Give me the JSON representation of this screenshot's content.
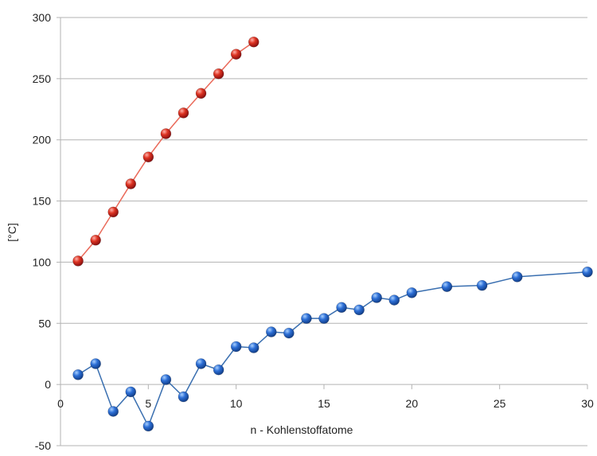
{
  "chart_data": {
    "type": "line",
    "title": "",
    "xlabel": "n - Kohlenstoffatome",
    "ylabel": "[°C]",
    "xlim": [
      0,
      30
    ],
    "ylim": [
      -50,
      300
    ],
    "xticks": [
      0,
      5,
      10,
      15,
      20,
      25,
      30
    ],
    "yticks": [
      -50,
      0,
      50,
      100,
      150,
      200,
      250,
      300
    ],
    "grid": "horizontal",
    "legend": "none",
    "series": [
      {
        "color": "#cc2222",
        "line_color": "#ea6a5a",
        "points": [
          {
            "x": 1,
            "y": 101
          },
          {
            "x": 2,
            "y": 118
          },
          {
            "x": 3,
            "y": 141
          },
          {
            "x": 4,
            "y": 164
          },
          {
            "x": 5,
            "y": 186
          },
          {
            "x": 6,
            "y": 205
          },
          {
            "x": 7,
            "y": 222
          },
          {
            "x": 8,
            "y": 238
          },
          {
            "x": 9,
            "y": 254
          },
          {
            "x": 10,
            "y": 270
          },
          {
            "x": 11,
            "y": 280
          }
        ]
      },
      {
        "color": "#2a66cc",
        "line_color": "#3a6fb0",
        "points": [
          {
            "x": 1,
            "y": 8
          },
          {
            "x": 2,
            "y": 17
          },
          {
            "x": 3,
            "y": -22
          },
          {
            "x": 4,
            "y": -6
          },
          {
            "x": 5,
            "y": -34
          },
          {
            "x": 6,
            "y": 4
          },
          {
            "x": 7,
            "y": -10
          },
          {
            "x": 8,
            "y": 17
          },
          {
            "x": 9,
            "y": 12
          },
          {
            "x": 10,
            "y": 31
          },
          {
            "x": 11,
            "y": 30
          },
          {
            "x": 12,
            "y": 43
          },
          {
            "x": 13,
            "y": 42
          },
          {
            "x": 14,
            "y": 54
          },
          {
            "x": 15,
            "y": 54
          },
          {
            "x": 16,
            "y": 63
          },
          {
            "x": 17,
            "y": 61
          },
          {
            "x": 18,
            "y": 71
          },
          {
            "x": 19,
            "y": 69
          },
          {
            "x": 20,
            "y": 75
          },
          {
            "x": 22,
            "y": 80
          },
          {
            "x": 24,
            "y": 81
          },
          {
            "x": 26,
            "y": 88
          },
          {
            "x": 30,
            "y": 92
          }
        ]
      }
    ]
  }
}
